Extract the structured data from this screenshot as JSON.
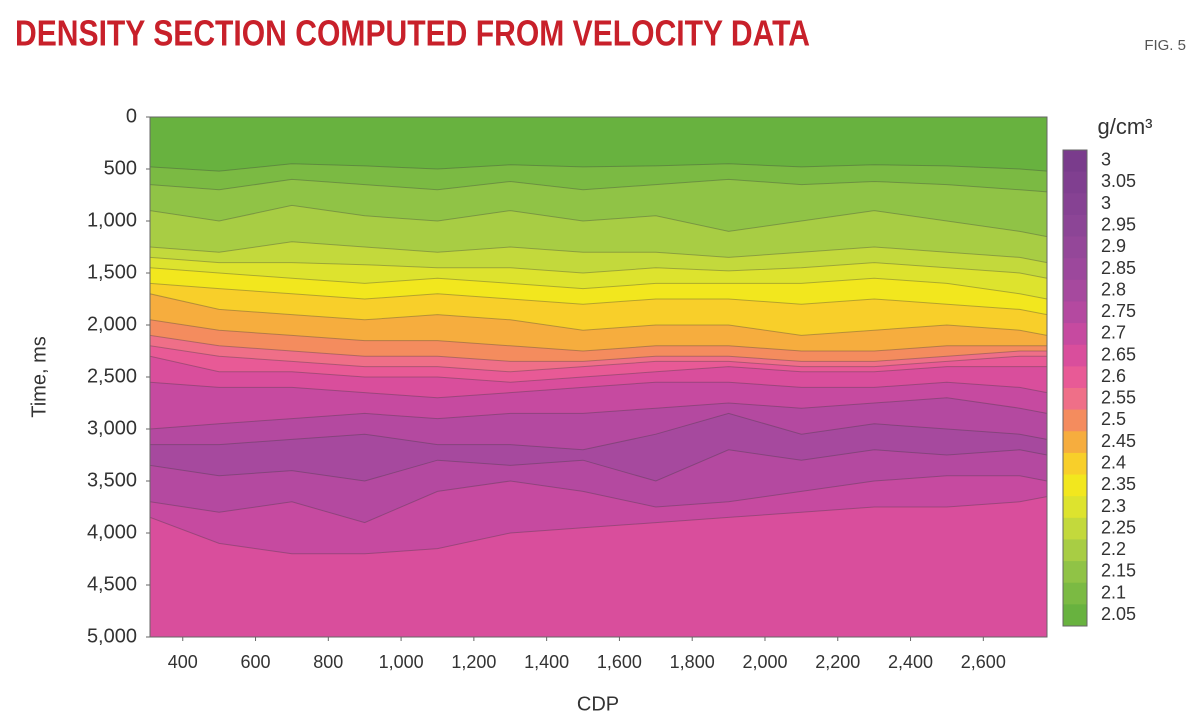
{
  "chart_data": {
    "type": "contour",
    "title": "DENSITY SECTION COMPUTED FROM VELOCITY DATA",
    "figure_label": "FIG. 5",
    "xlabel": "CDP",
    "ylabel": "Time, ms",
    "colorbar_label": "g/cm³",
    "xlim": [
      310,
      2775
    ],
    "xticks": [
      400,
      600,
      800,
      {
        "value": 1000,
        "label": "1,000"
      },
      {
        "value": 1200,
        "label": "1,200"
      },
      {
        "value": 1400,
        "label": "1,400"
      },
      {
        "value": 1600,
        "label": "1,600"
      },
      {
        "value": 1800,
        "label": "1,800"
      },
      {
        "value": 2000,
        "label": "2,000"
      },
      {
        "value": 2200,
        "label": "2,200"
      },
      {
        "value": 2400,
        "label": "2,400"
      },
      {
        "value": 2600,
        "label": "2,600"
      }
    ],
    "ylim": [
      0,
      5000
    ],
    "yticks": [
      0,
      500,
      {
        "value": 1000,
        "label": "1,000"
      },
      {
        "value": 1500,
        "label": "1,500"
      },
      {
        "value": 2000,
        "label": "2,000"
      },
      {
        "value": 2500,
        "label": "2,500"
      },
      {
        "value": 3000,
        "label": "3,000"
      },
      {
        "value": 3500,
        "label": "3,500"
      },
      {
        "value": 4000,
        "label": "4,000"
      },
      {
        "value": 4500,
        "label": "4,500"
      },
      {
        "value": 5000,
        "label": "5,000"
      }
    ],
    "y_inverted": true,
    "levels": [
      3,
      3.05,
      3,
      2.95,
      2.9,
      2.85,
      2.8,
      2.75,
      2.7,
      2.65,
      2.6,
      2.55,
      2.5,
      2.45,
      2.4,
      2.35,
      2.3,
      2.25,
      2.2,
      2.15,
      2.1,
      2.05
    ],
    "colors": [
      "#7a3c8c",
      "#803f90",
      "#864293",
      "#8c4596",
      "#944799",
      "#9c489c",
      "#a6499e",
      "#b449a0",
      "#c64aa0",
      "#d94e9c",
      "#e85a96",
      "#ef6f88",
      "#f48c5e",
      "#f6ad3e",
      "#f8cf2a",
      "#f2e71e",
      "#dde32e",
      "#c3d93c",
      "#a8cd44",
      "#90c346",
      "#7bba43",
      "#68b23f"
    ],
    "background_level": 2.05,
    "cdp": [
      310,
      500,
      700,
      900,
      1100,
      1300,
      1500,
      1700,
      1900,
      2100,
      2300,
      2500,
      2700,
      2775
    ],
    "contours": [
      {
        "level": 2.1,
        "time": [
          480,
          520,
          450,
          470,
          500,
          460,
          480,
          470,
          450,
          480,
          460,
          470,
          500,
          520
        ]
      },
      {
        "level": 2.15,
        "time": [
          650,
          700,
          600,
          650,
          700,
          620,
          700,
          650,
          600,
          650,
          620,
          650,
          700,
          720
        ]
      },
      {
        "level": 2.2,
        "time": [
          900,
          1000,
          850,
          950,
          1000,
          900,
          1000,
          950,
          1100,
          1000,
          900,
          1000,
          1100,
          1150
        ]
      },
      {
        "level": 2.25,
        "time": [
          1250,
          1300,
          1200,
          1250,
          1300,
          1250,
          1300,
          1300,
          1350,
          1300,
          1250,
          1300,
          1350,
          1400
        ]
      },
      {
        "level": 2.3,
        "time": [
          1350,
          1400,
          1400,
          1420,
          1450,
          1450,
          1500,
          1450,
          1480,
          1450,
          1400,
          1450,
          1500,
          1550
        ]
      },
      {
        "level": 2.35,
        "time": [
          1450,
          1500,
          1550,
          1600,
          1550,
          1600,
          1650,
          1600,
          1600,
          1600,
          1550,
          1600,
          1700,
          1750
        ]
      },
      {
        "level": 2.4,
        "time": [
          1600,
          1650,
          1700,
          1750,
          1700,
          1750,
          1800,
          1750,
          1750,
          1800,
          1750,
          1800,
          1850,
          1900
        ]
      },
      {
        "level": 2.45,
        "time": [
          1700,
          1850,
          1900,
          1950,
          1900,
          1950,
          2050,
          2000,
          2000,
          2100,
          2050,
          2000,
          2050,
          2100
        ]
      },
      {
        "level": 2.5,
        "time": [
          1950,
          2050,
          2100,
          2150,
          2150,
          2200,
          2250,
          2200,
          2200,
          2250,
          2250,
          2200,
          2200,
          2200
        ]
      },
      {
        "level": 2.55,
        "time": [
          2100,
          2200,
          2250,
          2300,
          2300,
          2350,
          2350,
          2300,
          2300,
          2350,
          2350,
          2300,
          2250,
          2250
        ]
      },
      {
        "level": 2.6,
        "time": [
          2200,
          2300,
          2350,
          2400,
          2400,
          2450,
          2400,
          2350,
          2350,
          2400,
          2400,
          2350,
          2300,
          2300
        ]
      },
      {
        "level": 2.65,
        "time": [
          2300,
          2450,
          2450,
          2500,
          2500,
          2550,
          2500,
          2450,
          2400,
          2450,
          2450,
          2400,
          2400,
          2400
        ]
      },
      {
        "level": 2.7,
        "time": [
          2550,
          2600,
          2600,
          2650,
          2700,
          2650,
          2600,
          2550,
          2550,
          2600,
          2600,
          2550,
          2600,
          2650
        ],
        "bottom": [
          3850,
          4100,
          4200,
          4200,
          4150,
          4000,
          3950,
          3900,
          3850,
          3800,
          3750,
          3750,
          3700,
          3650
        ]
      },
      {
        "level": 2.75,
        "time": [
          3000,
          2950,
          2900,
          2850,
          2900,
          2850,
          2850,
          2800,
          2750,
          2800,
          2750,
          2700,
          2800,
          2850
        ],
        "bottom": [
          3700,
          3800,
          3700,
          3900,
          3600,
          3500,
          3600,
          3750,
          3700,
          3600,
          3500,
          3450,
          3450,
          3500
        ]
      },
      {
        "level": 2.8,
        "time": [
          3150,
          3150,
          3100,
          3050,
          3150,
          3150,
          3200,
          3050,
          2850,
          3050,
          2950,
          3000,
          3050,
          3100
        ],
        "bottom": [
          3350,
          3450,
          3400,
          3500,
          3300,
          3350,
          3300,
          3500,
          3200,
          3300,
          3200,
          3250,
          3200,
          3250
        ]
      }
    ]
  }
}
